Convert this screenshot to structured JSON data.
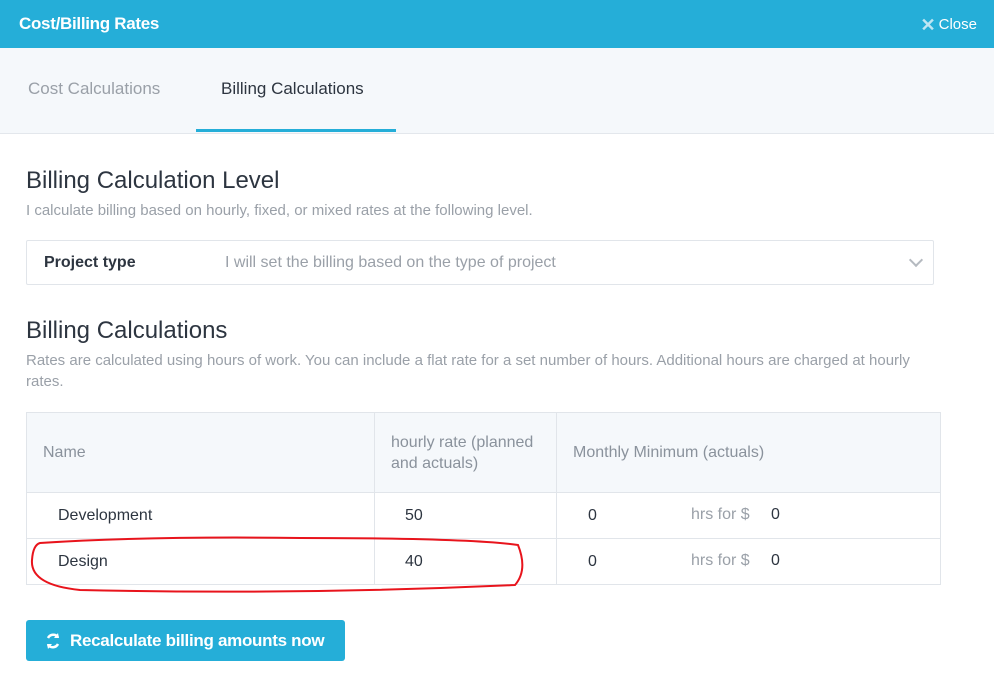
{
  "header": {
    "title": "Cost/Billing Rates",
    "close_label": "Close"
  },
  "tabs": [
    {
      "label": "Cost Calculations",
      "active": false
    },
    {
      "label": "Billing Calculations",
      "active": true
    }
  ],
  "level": {
    "title": "Billing Calculation Level",
    "description": "I calculate billing based on hourly, fixed, or mixed rates at the following level.",
    "select_label": "Project type",
    "select_value": "I will set the billing based on the type of project"
  },
  "calc": {
    "title": "Billing Calculations",
    "description": "Rates are calculated using hours of work. You can include a flat rate for a set number of hours. Additional hours are charged at hourly rates."
  },
  "table": {
    "headers": [
      "Name",
      "hourly rate (planned and actuals)",
      "Monthly Minimum (actuals)"
    ],
    "rows": [
      {
        "name": "Development",
        "rate": "50",
        "hours": "0",
        "hrs_label": "hrs for $",
        "amount": "0"
      },
      {
        "name": "Design",
        "rate": "40",
        "hours": "0",
        "hrs_label": "hrs for $",
        "amount": "0"
      }
    ]
  },
  "button": {
    "label": "Recalculate billing amounts now",
    "icon": "refresh-icon"
  },
  "colors": {
    "accent": "#25aed8",
    "annotation": "#e8141c"
  }
}
